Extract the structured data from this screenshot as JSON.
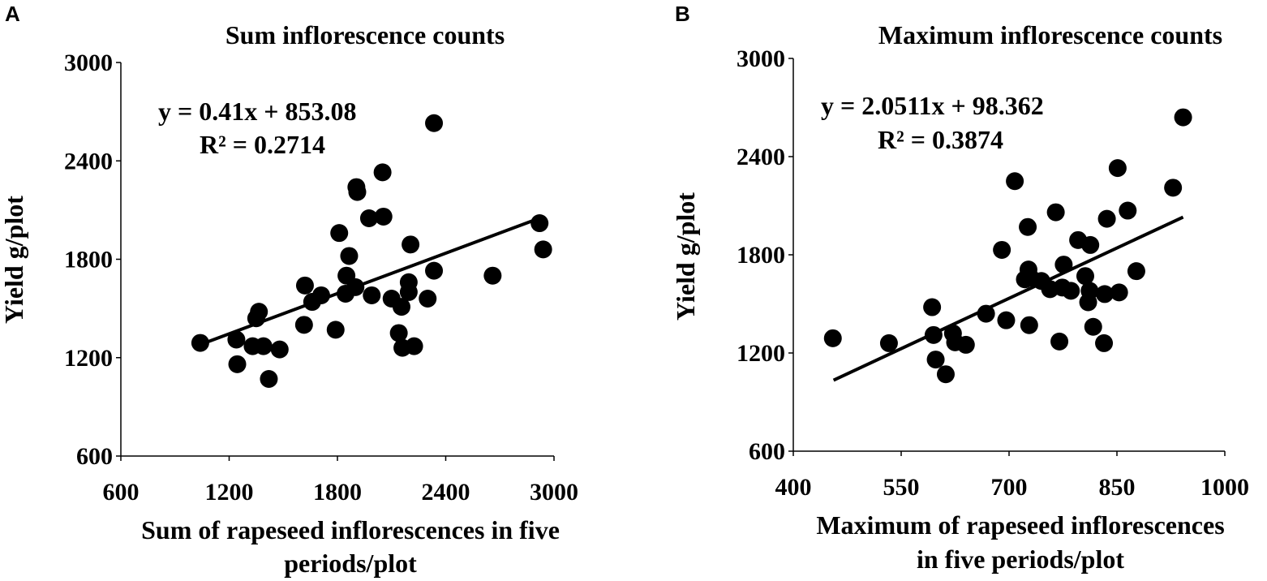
{
  "chart_data": [
    {
      "panel_label": "A",
      "type": "scatter",
      "title": "Sum inflorescence counts",
      "xlabel_lines": [
        "Sum of rapeseed inflorescences in five",
        "periods/plot"
      ],
      "ylabel": "Yield g/plot",
      "xlim": [
        600,
        3000
      ],
      "ylim": [
        600,
        3000
      ],
      "xticks": [
        600,
        1200,
        1800,
        2400,
        3000
      ],
      "yticks": [
        600,
        1200,
        1800,
        2400,
        3000
      ],
      "equation": "y = 0.41x + 853.08",
      "r_squared": "R² = 0.2714",
      "trend": {
        "slope": 0.41,
        "intercept": 853.08,
        "x_range": [
          1045,
          2905
        ]
      },
      "points": [
        [
          1040,
          1290
        ],
        [
          1240,
          1310
        ],
        [
          1245,
          1160
        ],
        [
          1330,
          1270
        ],
        [
          1350,
          1440
        ],
        [
          1365,
          1480
        ],
        [
          1390,
          1270
        ],
        [
          1420,
          1070
        ],
        [
          1480,
          1250
        ],
        [
          1620,
          1640
        ],
        [
          1615,
          1400
        ],
        [
          1660,
          1540
        ],
        [
          1710,
          1580
        ],
        [
          1790,
          1370
        ],
        [
          1810,
          1960
        ],
        [
          1845,
          1590
        ],
        [
          1850,
          1700
        ],
        [
          1865,
          1820
        ],
        [
          1900,
          1630
        ],
        [
          1905,
          2240
        ],
        [
          1910,
          2210
        ],
        [
          1975,
          2050
        ],
        [
          1990,
          1580
        ],
        [
          2050,
          2330
        ],
        [
          2055,
          2060
        ],
        [
          2100,
          1560
        ],
        [
          2140,
          1350
        ],
        [
          2155,
          1510
        ],
        [
          2160,
          1260
        ],
        [
          2195,
          1600
        ],
        [
          2195,
          1660
        ],
        [
          2205,
          1890
        ],
        [
          2225,
          1270
        ],
        [
          2300,
          1560
        ],
        [
          2335,
          1730
        ],
        [
          2335,
          2630
        ],
        [
          2660,
          1700
        ],
        [
          2920,
          2020
        ],
        [
          2940,
          1860
        ]
      ]
    },
    {
      "panel_label": "B",
      "type": "scatter",
      "title": "Maximum inflorescence counts",
      "xlabel_lines": [
        "Maximum of rapeseed inflorescences",
        "in five periods/plot"
      ],
      "ylabel": "Yield g/plot",
      "xlim": [
        400,
        1000
      ],
      "ylim": [
        600,
        3000
      ],
      "xticks": [
        400,
        550,
        700,
        850,
        1000
      ],
      "yticks": [
        600,
        1200,
        1800,
        2400,
        3000
      ],
      "equation": "y = 2.0511x + 98.362",
      "r_squared": "R² = 0.3874",
      "trend": {
        "slope": 2.0511,
        "intercept": 98.362,
        "x_range": [
          456,
          942
        ]
      },
      "points": [
        [
          455,
          1290
        ],
        [
          533,
          1260
        ],
        [
          593,
          1480
        ],
        [
          595,
          1310
        ],
        [
          598,
          1160
        ],
        [
          612,
          1070
        ],
        [
          622,
          1320
        ],
        [
          625,
          1265
        ],
        [
          640,
          1250
        ],
        [
          668,
          1440
        ],
        [
          690,
          1830
        ],
        [
          696,
          1400
        ],
        [
          708,
          2250
        ],
        [
          722,
          1650
        ],
        [
          726,
          1970
        ],
        [
          727,
          1710
        ],
        [
          728,
          1370
        ],
        [
          730,
          1660
        ],
        [
          745,
          1640
        ],
        [
          757,
          1590
        ],
        [
          765,
          2060
        ],
        [
          770,
          1270
        ],
        [
          774,
          1600
        ],
        [
          776,
          1740
        ],
        [
          786,
          1580
        ],
        [
          796,
          1890
        ],
        [
          806,
          1670
        ],
        [
          810,
          1510
        ],
        [
          812,
          1580
        ],
        [
          813,
          1860
        ],
        [
          817,
          1360
        ],
        [
          832,
          1260
        ],
        [
          833,
          1560
        ],
        [
          836,
          2020
        ],
        [
          851,
          2330
        ],
        [
          853,
          1570
        ],
        [
          865,
          2070
        ],
        [
          877,
          1700
        ],
        [
          928,
          2210
        ],
        [
          942,
          2640
        ]
      ]
    }
  ]
}
